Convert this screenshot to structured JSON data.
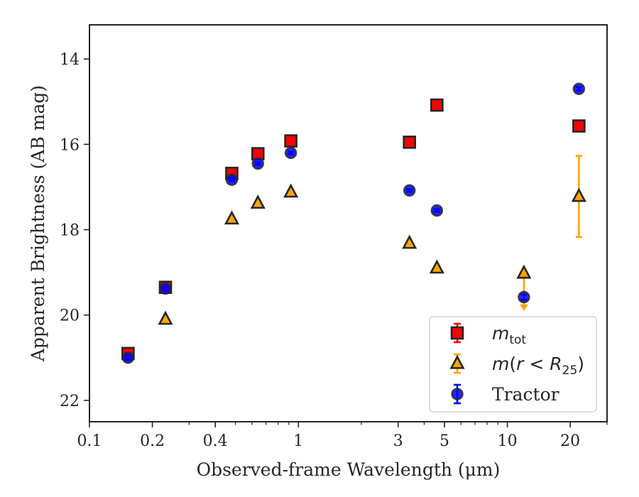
{
  "chart_data": {
    "type": "scatter",
    "xlabel": "Observed-frame Wavelength (μm)",
    "ylabel": "Apparent Brightness (AB mag)",
    "xscale": "log",
    "xlim": [
      0.1,
      30
    ],
    "ylim": [
      22.5,
      13.2
    ],
    "y_inverted": true,
    "xticks": [
      {
        "value": 0.1,
        "label": "0.1"
      },
      {
        "value": 0.2,
        "label": "0.2"
      },
      {
        "value": 0.4,
        "label": "0.4"
      },
      {
        "value": 1,
        "label": "1"
      },
      {
        "value": 3,
        "label": "3"
      },
      {
        "value": 5,
        "label": "5"
      },
      {
        "value": 10,
        "label": "10"
      },
      {
        "value": 20,
        "label": "20"
      }
    ],
    "yticks": [
      {
        "value": 14,
        "label": "14"
      },
      {
        "value": 16,
        "label": "16"
      },
      {
        "value": 18,
        "label": "18"
      },
      {
        "value": 20,
        "label": "20"
      },
      {
        "value": 22,
        "label": "22"
      }
    ],
    "legend_position": "bottom-right",
    "grid": false,
    "series": [
      {
        "name": "m_tot",
        "legend_label": "m_tot",
        "marker": "square",
        "color": "#ff0000",
        "points": [
          {
            "x": 0.153,
            "y": 20.9,
            "err": 0.06
          },
          {
            "x": 0.231,
            "y": 19.35,
            "err": 0.04
          },
          {
            "x": 0.48,
            "y": 16.68,
            "err": 0.03
          },
          {
            "x": 0.64,
            "y": 16.22,
            "err": 0.03
          },
          {
            "x": 0.92,
            "y": 15.92,
            "err": 0.03
          },
          {
            "x": 3.4,
            "y": 15.95,
            "err": 0.02
          },
          {
            "x": 4.6,
            "y": 15.08,
            "err": 0.02
          },
          {
            "x": 22,
            "y": 15.57,
            "err": 0.03
          }
        ]
      },
      {
        "name": "m(r < R25)",
        "legend_label": "m(r < R25)",
        "marker": "triangle",
        "color": "#ffa500",
        "points": [
          {
            "x": 0.231,
            "y": 20.1,
            "err": 0.03
          },
          {
            "x": 0.48,
            "y": 17.75,
            "err": 0.02
          },
          {
            "x": 0.64,
            "y": 17.38,
            "err": 0.02
          },
          {
            "x": 0.92,
            "y": 17.12,
            "err": 0.02
          },
          {
            "x": 3.4,
            "y": 18.32,
            "err": 0.02
          },
          {
            "x": 4.6,
            "y": 18.9,
            "err": 0.02
          },
          {
            "x": 12,
            "y": 19.02,
            "err": 0.0,
            "upper_limit": true,
            "limit_to": 19.85
          },
          {
            "x": 22,
            "y": 17.22,
            "err_low": 0.95,
            "err_high": 0.95
          }
        ]
      },
      {
        "name": "Tractor",
        "legend_label": "Tractor",
        "marker": "circle",
        "color": "#0000ff",
        "points": [
          {
            "x": 0.153,
            "y": 21.0,
            "err": 0.06
          },
          {
            "x": 0.231,
            "y": 19.38,
            "err": 0.04
          },
          {
            "x": 0.48,
            "y": 16.83,
            "err": 0.03
          },
          {
            "x": 0.64,
            "y": 16.45,
            "err": 0.03
          },
          {
            "x": 0.92,
            "y": 16.2,
            "err": 0.03
          },
          {
            "x": 3.4,
            "y": 17.08,
            "err": 0.03
          },
          {
            "x": 4.6,
            "y": 17.55,
            "err": 0.03
          },
          {
            "x": 12,
            "y": 19.58,
            "err": 0.06
          },
          {
            "x": 22,
            "y": 14.7,
            "err": 0.04
          }
        ]
      }
    ]
  }
}
